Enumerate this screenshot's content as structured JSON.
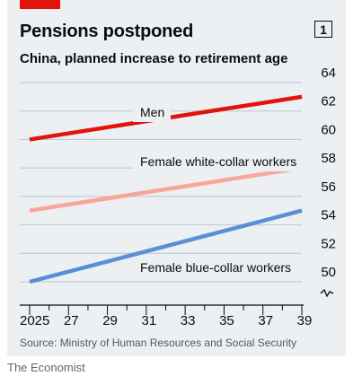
{
  "header": {
    "title": "Pensions postponed",
    "subtitle": "China, planned increase to retirement age",
    "badge": "1"
  },
  "footer": {
    "source": "Source: Ministry of Human Resources and Social Security",
    "credit": "The Economist"
  },
  "colors": {
    "accent": "#e3120b",
    "men": "#e3120b",
    "female_white_collar": "#f9a697",
    "female_blue_collar": "#5b8fd4"
  },
  "chart_data": {
    "type": "line",
    "xlabel": "",
    "ylabel": "",
    "x_ticks": [
      2025,
      2027,
      2029,
      2031,
      2033,
      2035,
      2037,
      2039
    ],
    "x_tick_labels": [
      "2025",
      "27",
      "29",
      "31",
      "33",
      "35",
      "37",
      "39"
    ],
    "xlim": [
      2025,
      2039
    ],
    "y_ticks": [
      50,
      52,
      54,
      56,
      58,
      60,
      62,
      64
    ],
    "y_tick_labels": [
      "50",
      "52",
      "54",
      "56",
      "58",
      "60",
      "62",
      "64"
    ],
    "ylim": [
      50,
      64
    ],
    "y_axis_break": true,
    "y_axis_side": "right",
    "grid": true,
    "series": [
      {
        "name": "Men",
        "color": "#e3120b",
        "x": [
          2025,
          2039
        ],
        "y": [
          60,
          63
        ]
      },
      {
        "name": "Female white-collar workers",
        "color": "#f9a697",
        "x": [
          2025,
          2039
        ],
        "y": [
          55,
          58
        ]
      },
      {
        "name": "Female blue-collar workers",
        "color": "#5b8fd4",
        "x": [
          2025,
          2039
        ],
        "y": [
          50,
          55
        ]
      }
    ]
  }
}
